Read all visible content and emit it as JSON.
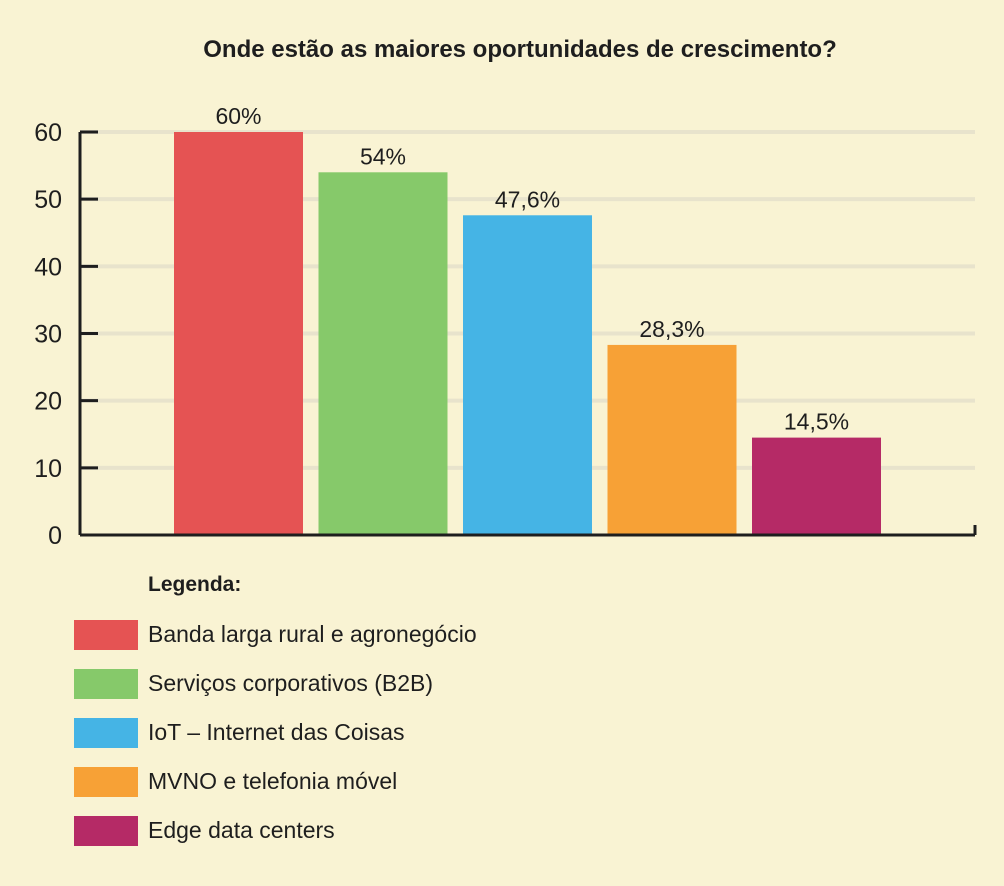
{
  "chart_data": {
    "type": "bar",
    "title": "Onde estão as maiores oportunidades de crescimento?",
    "xlabel": "",
    "ylabel": "",
    "ylim": [
      0,
      60
    ],
    "yticks": [
      0,
      10,
      20,
      30,
      40,
      50,
      60
    ],
    "grid": true,
    "categories": [
      "Banda larga rural e agronegócio",
      "Serviços corporativos (B2B)",
      "IoT – Internet das Coisas",
      "MVNO e telefonia móvel",
      "Edge data centers"
    ],
    "values": [
      60,
      54,
      47.6,
      28.3,
      14.5
    ],
    "data_labels": [
      "60%",
      "54%",
      "47,6%",
      "28,3%",
      "14,5%"
    ],
    "colors": [
      "#e55353",
      "#86c96a",
      "#45b4e5",
      "#f7a136",
      "#b52a66"
    ]
  },
  "legend": {
    "title": "Legenda:",
    "items": [
      "Banda larga rural e agronegócio",
      "Serviços corporativos (B2B)",
      "IoT – Internet das Coisas",
      "MVNO e telefonia móvel",
      "Edge data centers"
    ]
  }
}
